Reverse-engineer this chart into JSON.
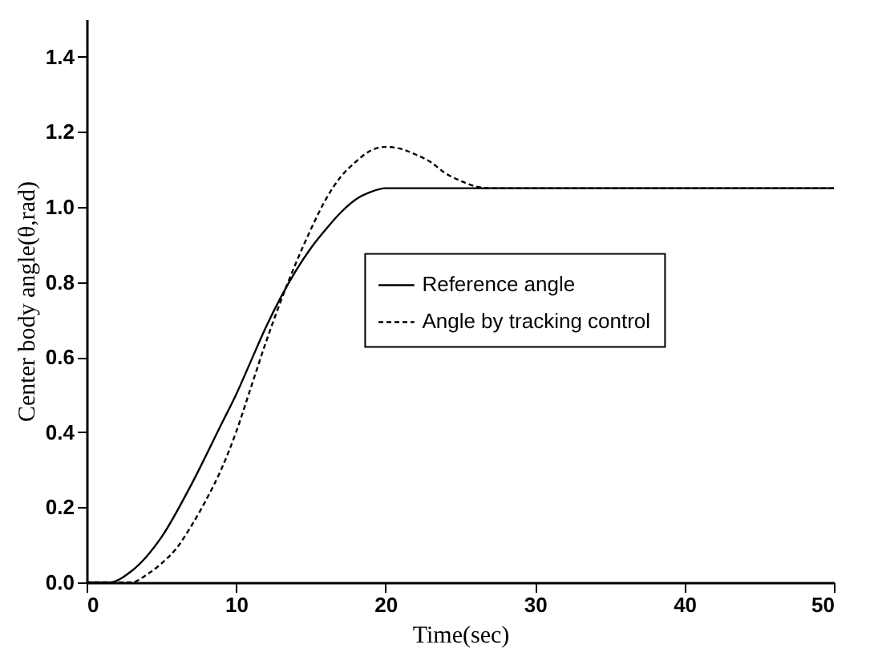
{
  "chart_data": {
    "type": "line",
    "xlabel": "Time(sec)",
    "ylabel": "Center body angle(θ,rad)",
    "xlim": [
      0,
      50
    ],
    "xticks": [
      0,
      10,
      20,
      30,
      40,
      50
    ],
    "ylim": [
      0,
      1.5
    ],
    "yticks": [
      {
        "value": 0,
        "label": "0.0"
      },
      0.2,
      0.4,
      0.6,
      0.8,
      {
        "value": 1,
        "label": "1.0"
      },
      1.2,
      1.4
    ],
    "legend": "right",
    "grid": false,
    "marker": "none",
    "series": [
      {
        "name": "Reference angle",
        "color": "#000000",
        "line_style": "solid",
        "x": [
          0,
          1.5,
          3,
          5,
          7,
          9,
          10,
          11,
          12,
          13,
          14,
          15,
          16,
          17,
          18,
          19,
          20,
          30,
          40,
          50
        ],
        "values": [
          0,
          0,
          0.03,
          0.12,
          0.26,
          0.42,
          0.5,
          0.59,
          0.68,
          0.76,
          0.83,
          0.89,
          0.94,
          0.985,
          1.02,
          1.04,
          1.05,
          1.05,
          1.05,
          1.05
        ]
      },
      {
        "name": "Angle by tracking control",
        "color": "#000000",
        "line_style": "dashed",
        "x": [
          0,
          3,
          4,
          5,
          6,
          7,
          8,
          9,
          10,
          11,
          12,
          13,
          14,
          15,
          16,
          17,
          18,
          19,
          20,
          21,
          22,
          23,
          24,
          25,
          26,
          27,
          30,
          40,
          50
        ],
        "values": [
          0,
          0,
          0.02,
          0.05,
          0.09,
          0.15,
          0.22,
          0.3,
          0.4,
          0.52,
          0.64,
          0.75,
          0.85,
          0.94,
          1.02,
          1.08,
          1.12,
          1.15,
          1.16,
          1.155,
          1.14,
          1.12,
          1.09,
          1.07,
          1.055,
          1.05,
          1.05,
          1.05,
          1.05
        ]
      }
    ]
  }
}
